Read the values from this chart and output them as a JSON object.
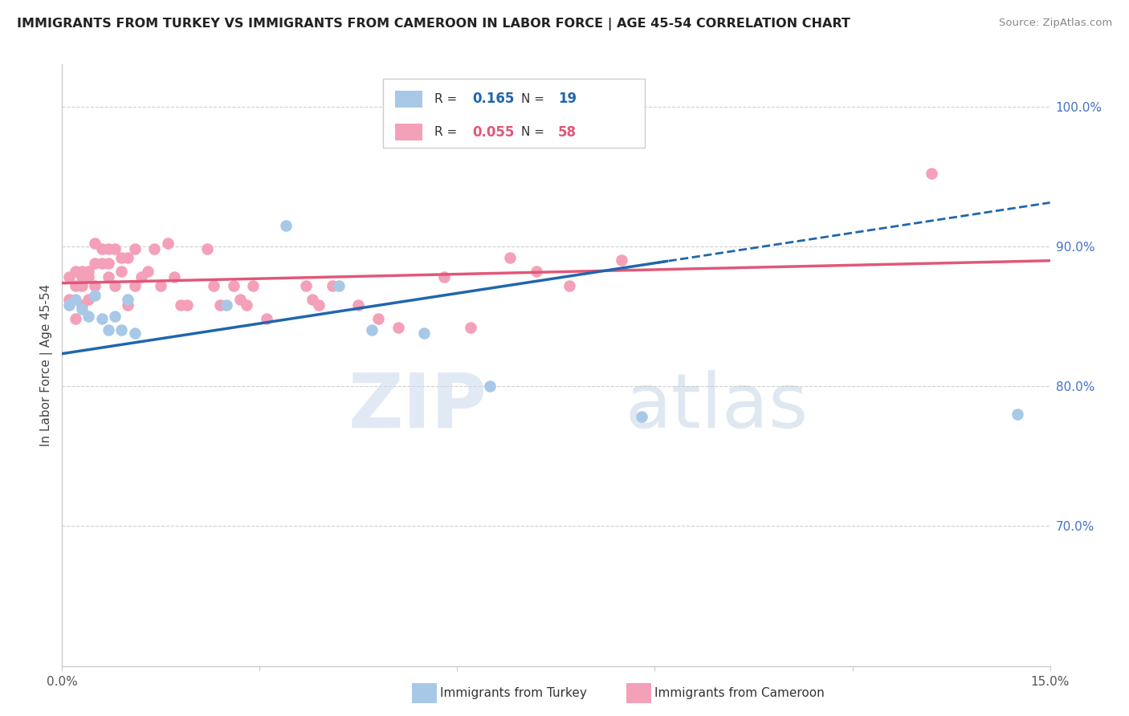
{
  "title": "IMMIGRANTS FROM TURKEY VS IMMIGRANTS FROM CAMEROON IN LABOR FORCE | AGE 45-54 CORRELATION CHART",
  "source": "Source: ZipAtlas.com",
  "ylabel": "In Labor Force | Age 45-54",
  "xlim": [
    0.0,
    0.15
  ],
  "ylim": [
    0.6,
    1.03
  ],
  "xticks": [
    0.0,
    0.03,
    0.06,
    0.09,
    0.12,
    0.15
  ],
  "xticklabels": [
    "0.0%",
    "",
    "",
    "",
    "",
    "15.0%"
  ],
  "yticks_right": [
    0.7,
    0.8,
    0.9,
    1.0
  ],
  "ytick_labels_right": [
    "70.0%",
    "80.0%",
    "90.0%",
    "100.0%"
  ],
  "turkey_color": "#a8c8e8",
  "cameroon_color": "#f4a0b8",
  "turkey_line_color": "#2166ac",
  "cameroon_line_color": "#e05878",
  "turkey_R": 0.165,
  "turkey_N": 19,
  "cameroon_R": 0.055,
  "cameroon_N": 58,
  "legend_label_turkey": "Immigrants from Turkey",
  "legend_label_cameroon": "Immigrants from Cameroon",
  "turkey_x": [
    0.001,
    0.002,
    0.003,
    0.004,
    0.005,
    0.006,
    0.007,
    0.008,
    0.009,
    0.01,
    0.011,
    0.025,
    0.034,
    0.042,
    0.047,
    0.055,
    0.065,
    0.088,
    0.145
  ],
  "turkey_y": [
    0.858,
    0.862,
    0.855,
    0.85,
    0.865,
    0.848,
    0.84,
    0.85,
    0.84,
    0.862,
    0.838,
    0.858,
    0.915,
    0.872,
    0.84,
    0.838,
    0.8,
    0.778,
    0.78
  ],
  "cameroon_x": [
    0.001,
    0.001,
    0.002,
    0.002,
    0.002,
    0.003,
    0.003,
    0.003,
    0.003,
    0.004,
    0.004,
    0.004,
    0.005,
    0.005,
    0.005,
    0.006,
    0.006,
    0.007,
    0.007,
    0.007,
    0.008,
    0.008,
    0.009,
    0.009,
    0.01,
    0.01,
    0.011,
    0.011,
    0.012,
    0.013,
    0.014,
    0.015,
    0.016,
    0.017,
    0.018,
    0.019,
    0.022,
    0.023,
    0.024,
    0.026,
    0.027,
    0.028,
    0.029,
    0.031,
    0.037,
    0.038,
    0.039,
    0.041,
    0.045,
    0.048,
    0.051,
    0.058,
    0.062,
    0.068,
    0.072,
    0.077,
    0.085,
    0.132
  ],
  "cameroon_y": [
    0.878,
    0.862,
    0.882,
    0.872,
    0.848,
    0.878,
    0.882,
    0.872,
    0.858,
    0.882,
    0.878,
    0.862,
    0.902,
    0.888,
    0.872,
    0.898,
    0.888,
    0.898,
    0.888,
    0.878,
    0.898,
    0.872,
    0.892,
    0.882,
    0.892,
    0.858,
    0.898,
    0.872,
    0.878,
    0.882,
    0.898,
    0.872,
    0.902,
    0.878,
    0.858,
    0.858,
    0.898,
    0.872,
    0.858,
    0.872,
    0.862,
    0.858,
    0.872,
    0.848,
    0.872,
    0.862,
    0.858,
    0.872,
    0.858,
    0.848,
    0.842,
    0.878,
    0.842,
    0.892,
    0.882,
    0.872,
    0.89,
    0.952
  ],
  "watermark_zip": "ZIP",
  "watermark_atlas": "atlas",
  "background_color": "#ffffff",
  "grid_color": "#d0d0d0"
}
